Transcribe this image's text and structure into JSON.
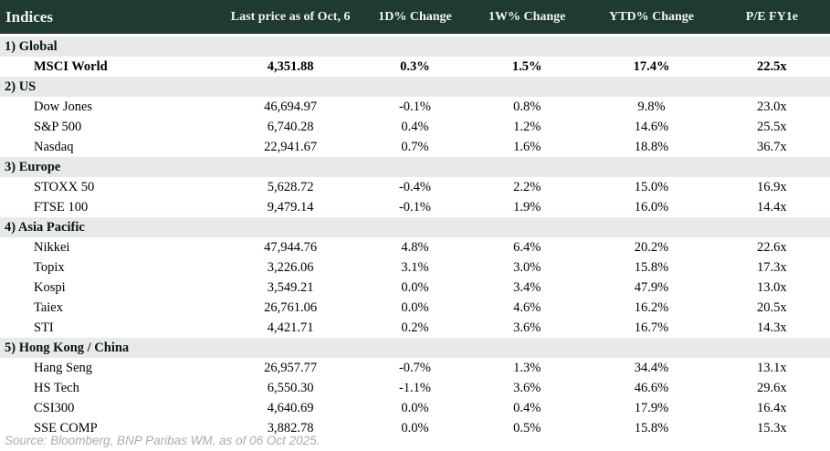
{
  "chart_data": {
    "type": "table",
    "title": "Indices",
    "columns": [
      "Indices",
      "Last price as of Oct, 6",
      "1D% Change",
      "1W% Change",
      "YTD% Change",
      "P/E FY1e"
    ],
    "sections": [
      {
        "label": "1) Global",
        "rows": [
          {
            "name": "MSCI World",
            "last_price": "4,351.88",
            "chg_1d": "0.3%",
            "chg_1w": "1.5%",
            "chg_ytd": "17.4%",
            "pe_fy1e": "22.5x",
            "bold": true
          }
        ]
      },
      {
        "label": "2) US",
        "rows": [
          {
            "name": "Dow Jones",
            "last_price": "46,694.97",
            "chg_1d": "-0.1%",
            "chg_1w": "0.8%",
            "chg_ytd": "9.8%",
            "pe_fy1e": "23.0x",
            "bold": false
          },
          {
            "name": "S&P 500",
            "last_price": "6,740.28",
            "chg_1d": "0.4%",
            "chg_1w": "1.2%",
            "chg_ytd": "14.6%",
            "pe_fy1e": "25.5x",
            "bold": false
          },
          {
            "name": "Nasdaq",
            "last_price": "22,941.67",
            "chg_1d": "0.7%",
            "chg_1w": "1.6%",
            "chg_ytd": "18.8%",
            "pe_fy1e": "36.7x",
            "bold": false
          }
        ]
      },
      {
        "label": "3) Europe",
        "rows": [
          {
            "name": "STOXX 50",
            "last_price": "5,628.72",
            "chg_1d": "-0.4%",
            "chg_1w": "2.2%",
            "chg_ytd": "15.0%",
            "pe_fy1e": "16.9x",
            "bold": false
          },
          {
            "name": "FTSE 100",
            "last_price": "9,479.14",
            "chg_1d": "-0.1%",
            "chg_1w": "1.9%",
            "chg_ytd": "16.0%",
            "pe_fy1e": "14.4x",
            "bold": false
          }
        ]
      },
      {
        "label": "4) Asia Pacific",
        "rows": [
          {
            "name": "Nikkei",
            "last_price": "47,944.76",
            "chg_1d": "4.8%",
            "chg_1w": "6.4%",
            "chg_ytd": "20.2%",
            "pe_fy1e": "22.6x",
            "bold": false
          },
          {
            "name": "Topix",
            "last_price": "3,226.06",
            "chg_1d": "3.1%",
            "chg_1w": "3.0%",
            "chg_ytd": "15.8%",
            "pe_fy1e": "17.3x",
            "bold": false
          },
          {
            "name": "Kospi",
            "last_price": "3,549.21",
            "chg_1d": "0.0%",
            "chg_1w": "3.4%",
            "chg_ytd": "47.9%",
            "pe_fy1e": "13.0x",
            "bold": false
          },
          {
            "name": "Taiex",
            "last_price": "26,761.06",
            "chg_1d": "0.0%",
            "chg_1w": "4.6%",
            "chg_ytd": "16.2%",
            "pe_fy1e": "20.5x",
            "bold": false
          },
          {
            "name": "STI",
            "last_price": "4,421.71",
            "chg_1d": "0.2%",
            "chg_1w": "3.6%",
            "chg_ytd": "16.7%",
            "pe_fy1e": "14.3x",
            "bold": false
          }
        ]
      },
      {
        "label": "5) Hong Kong / China",
        "rows": [
          {
            "name": "Hang Seng",
            "last_price": "26,957.77",
            "chg_1d": "-0.7%",
            "chg_1w": "1.3%",
            "chg_ytd": "34.4%",
            "pe_fy1e": "13.1x",
            "bold": false
          },
          {
            "name": "HS Tech",
            "last_price": "6,550.30",
            "chg_1d": "-1.1%",
            "chg_1w": "3.6%",
            "chg_ytd": "46.6%",
            "pe_fy1e": "29.6x",
            "bold": false
          },
          {
            "name": "CSI300",
            "last_price": "4,640.69",
            "chg_1d": "0.0%",
            "chg_1w": "0.4%",
            "chg_ytd": "17.9%",
            "pe_fy1e": "16.4x",
            "bold": false
          },
          {
            "name": "SSE COMP",
            "last_price": "3,882.78",
            "chg_1d": "0.0%",
            "chg_1w": "0.5%",
            "chg_ytd": "15.8%",
            "pe_fy1e": "15.3x",
            "bold": false
          }
        ]
      }
    ]
  },
  "footer": {
    "source_note": "Source: Bloomberg, BNP Paribas WM, as of 06 Oct 2025."
  },
  "colors": {
    "header_bg": "#1e3a33",
    "header_text": "#f4f4ee",
    "section_bg": "#e8eae7",
    "positive": "#0a9b3d",
    "negative": "#c2272d",
    "neutral": "#000000",
    "footer_text": "#a9aeae"
  }
}
